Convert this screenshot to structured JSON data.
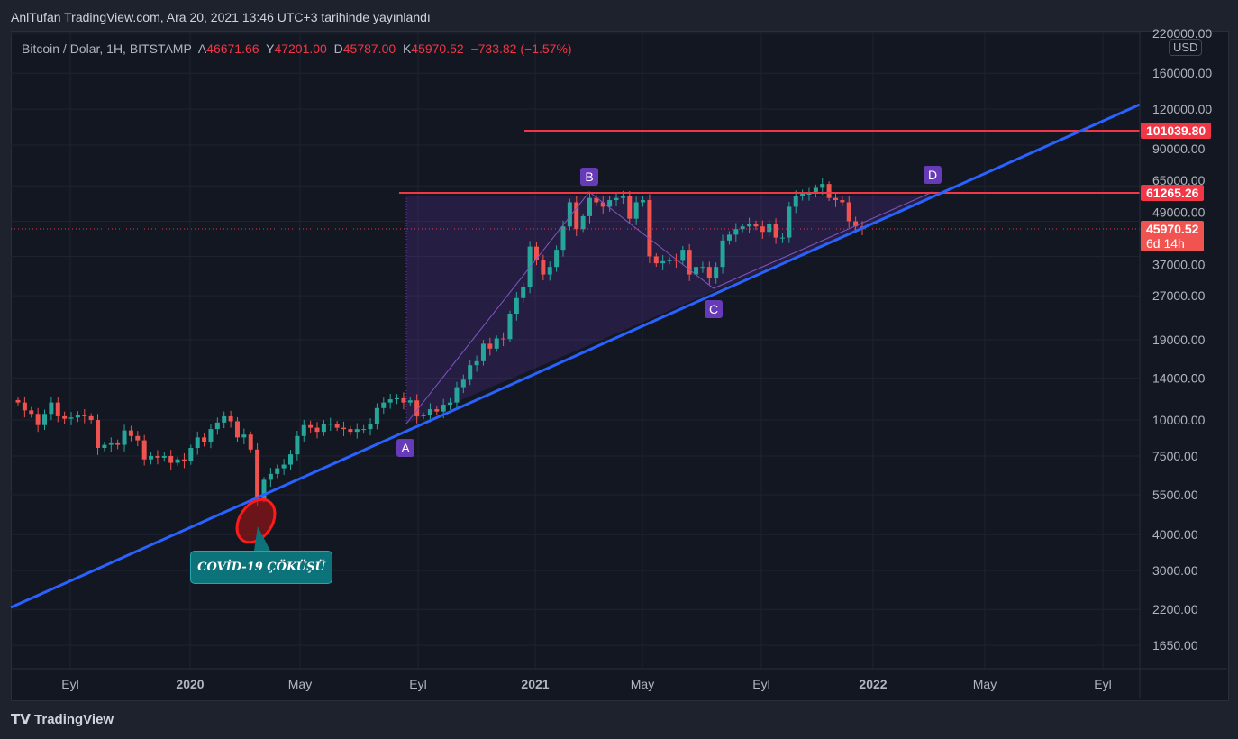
{
  "header": {
    "title": "AnlTufan TradingView.com, Ara 20, 2021 13:46 UTC+3 tarihinde yayınlandı"
  },
  "legend": {
    "symbol": "Bitcoin / Dolar, 1H, BITSTAMP",
    "o_label": "A",
    "o": "46671.66",
    "h_label": "Y",
    "h": "47201.00",
    "l_label": "D",
    "l": "45787.00",
    "c_label": "K",
    "c": "45970.52",
    "change": "−733.82 (−1.57%)"
  },
  "currency": "USD",
  "price_tags": {
    "level1": "101039.80",
    "level2": "61265.26",
    "last": "45970.52",
    "countdown": "6d 14h"
  },
  "pattern_points": [
    "A",
    "B",
    "C",
    "D"
  ],
  "callout": "COVİD-19 ÇÖKÜŞÜ",
  "brand": "TradingView",
  "colors": {
    "up": "#26a69a",
    "down": "#ef5350",
    "trend": "#2962ff",
    "level": "#f23645",
    "pattern": "#673ab7",
    "callout": "#0c737a"
  },
  "chart_data": {
    "type": "candlestick",
    "scale": "log",
    "interval_shown": "weekly candles",
    "start": "2019-07",
    "ylim": [
      1500,
      240000
    ],
    "y_ticks": [
      "220000.00",
      "160000.00",
      "120000.00",
      "90000.00",
      "65000.00",
      "49000.00",
      "37000.00",
      "27000.00",
      "19000.00",
      "14000.00",
      "10000.00",
      "7500.00",
      "5500.00",
      "4000.00",
      "3000.00",
      "2200.00",
      "1650.00"
    ],
    "x_ticks": [
      {
        "label": "Eyl",
        "bold": false
      },
      {
        "label": "2020",
        "bold": true
      },
      {
        "label": "May",
        "bold": false
      },
      {
        "label": "Eyl",
        "bold": false
      },
      {
        "label": "2021",
        "bold": true
      },
      {
        "label": "May",
        "bold": false
      },
      {
        "label": "Eyl",
        "bold": false
      },
      {
        "label": "2022",
        "bold": true
      },
      {
        "label": "May",
        "bold": false
      },
      {
        "label": "Eyl",
        "bold": false
      }
    ],
    "closes": [
      11500,
      10800,
      10500,
      9600,
      10500,
      11500,
      10300,
      10100,
      10200,
      10400,
      10300,
      10000,
      8000,
      8200,
      8300,
      8200,
      9200,
      8800,
      8500,
      7300,
      7500,
      7400,
      7500,
      7100,
      7300,
      7200,
      8000,
      8700,
      8400,
      9300,
      9800,
      10300,
      9900,
      8700,
      8900,
      7900,
      5300,
      6200,
      6500,
      6800,
      7000,
      7600,
      8800,
      9600,
      9400,
      9100,
      9700,
      9700,
      9400,
      9300,
      9100,
      9300,
      9300,
      9700,
      11000,
      11500,
      11800,
      11900,
      11500,
      11700,
      10300,
      10400,
      10900,
      10700,
      11300,
      11500,
      13000,
      13800,
      15500,
      16000,
      18400,
      17700,
      19200,
      19100,
      23400,
      26500,
      29000,
      40000,
      36000,
      32000,
      34000,
      39000,
      47000,
      57000,
      46000,
      51000,
      59000,
      57000,
      55000,
      58000,
      59000,
      60000,
      50000,
      57000,
      58000,
      37000,
      35000,
      35600,
      36000,
      35700,
      39000,
      32000,
      34000,
      34000,
      31000,
      34000,
      42000,
      44000,
      46000,
      47000,
      48000,
      47000,
      45000,
      48000,
      43000,
      43000,
      55000,
      60000,
      61000,
      61000,
      64000,
      66000,
      59000,
      58000,
      57000,
      49000,
      47000,
      45970
    ],
    "horizontal_levels": [
      101039.8,
      61265.26
    ],
    "last_price": 45970.52,
    "annotations": [
      "Ascending trendline",
      "ABCD pattern",
      "COVİD-19 ÇÖKÜŞÜ"
    ]
  }
}
